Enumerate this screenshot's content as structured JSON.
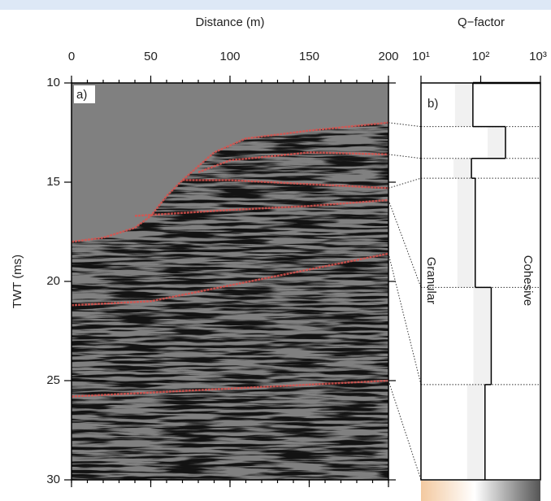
{
  "chart_data": [
    {
      "type": "seismic",
      "panel_label": "a)",
      "xlabel": "Distance (m)",
      "ylabel": "TWT (ms)",
      "xlim": [
        0,
        200
      ],
      "ylim": [
        10,
        30
      ],
      "xticks": [
        0,
        50,
        100,
        150,
        200
      ],
      "yticks": [
        10,
        15,
        20,
        25,
        30
      ],
      "series": [
        {
          "color": "#d9534f",
          "x": [
            0,
            20,
            40,
            50,
            60,
            70,
            90,
            110,
            150,
            200
          ],
          "values": [
            18,
            17.8,
            17.3,
            16.7,
            15.7,
            14.9,
            13.5,
            12.8,
            12.4,
            12.0
          ]
        },
        {
          "color": "#d9534f",
          "x": [
            80,
            100,
            150,
            200
          ],
          "values": [
            14.5,
            13.9,
            13.5,
            13.6
          ]
        },
        {
          "color": "#d9534f",
          "x": [
            70,
            100,
            150,
            200
          ],
          "values": [
            14.9,
            14.9,
            15.1,
            15.3
          ]
        },
        {
          "color": "#d9534f",
          "x": [
            40,
            100,
            150,
            200
          ],
          "values": [
            16.7,
            16.4,
            16.2,
            15.9
          ]
        },
        {
          "color": "#d9534f",
          "x": [
            0,
            50,
            100,
            150,
            200
          ],
          "values": [
            21.2,
            21.0,
            20.2,
            19.4,
            18.6
          ]
        },
        {
          "color": "#d9534f",
          "x": [
            0,
            50,
            100,
            150,
            200
          ],
          "values": [
            25.8,
            25.6,
            25.4,
            25.2,
            25.0
          ]
        }
      ]
    },
    {
      "type": "step",
      "panel_label": "b)",
      "xlabel": "Q−factor",
      "log_x": true,
      "xlim": [
        10,
        1000
      ],
      "xticks": [
        {
          "value": 10,
          "label": "10¹"
        },
        {
          "value": 100,
          "label": "10²"
        },
        {
          "value": 1000,
          "label": "10³"
        }
      ],
      "ylim": [
        10,
        30
      ],
      "boundaries": [
        10,
        12.2,
        13.8,
        14.8,
        20.3,
        25.2,
        30
      ],
      "values": [
        74,
        260,
        70,
        81,
        150,
        118
      ],
      "left_label": "Granular",
      "right_label": "Cohesive"
    }
  ]
}
